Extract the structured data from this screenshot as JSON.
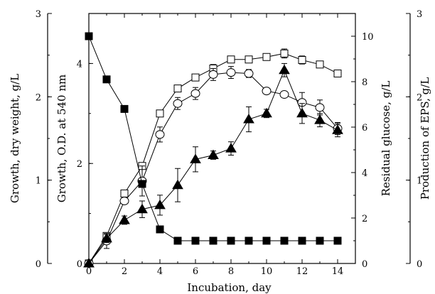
{
  "chart_data": {
    "type": "line",
    "xlabel": "Incubation, day",
    "x_ticks": [
      "0",
      "2",
      "4",
      "6",
      "8",
      "10",
      "12",
      "14"
    ],
    "xlim": [
      0,
      15
    ],
    "axes": [
      {
        "id": "dw",
        "label": "Growth, dry weight, g/L",
        "ylim": [
          0,
          3
        ],
        "ticks": [
          "0",
          "1",
          "2",
          "3"
        ]
      },
      {
        "id": "od",
        "label": "Growth, O.D. at 540 nm",
        "ylim": [
          0,
          5
        ],
        "ticks": [
          "0",
          "2",
          "4"
        ]
      },
      {
        "id": "glu",
        "label": "Residual glucose, g/L",
        "ylim": [
          0,
          11
        ],
        "ticks": [
          "0",
          "2",
          "4",
          "6",
          "8",
          "10"
        ]
      },
      {
        "id": "eps",
        "label": "Production of EPS, g/L",
        "ylim": [
          0,
          3
        ],
        "ticks": [
          "0",
          "1",
          "2",
          "3"
        ]
      }
    ],
    "series": [
      {
        "marker": "open-square",
        "axis": "od",
        "x": [
          0,
          1,
          2,
          3,
          4,
          5,
          6,
          7,
          8,
          9,
          10,
          11,
          12,
          13,
          14
        ],
        "y": [
          0,
          0.55,
          1.4,
          1.95,
          3.0,
          3.5,
          3.72,
          3.9,
          4.08,
          4.08,
          4.13,
          4.2,
          4.07,
          3.98,
          3.8
        ],
        "err": [
          0,
          0.05,
          0.05,
          0.05,
          0.06,
          0.05,
          0.05,
          0.08,
          0.06,
          0.05,
          0.05,
          0.09,
          0.08,
          0.06,
          0.06
        ]
      },
      {
        "marker": "open-circle",
        "axis": "od",
        "x": [
          0,
          1,
          2,
          3,
          4,
          5,
          6,
          7,
          8,
          9,
          10,
          11,
          12,
          13,
          14
        ],
        "y": [
          0,
          0.45,
          1.25,
          1.65,
          2.58,
          3.2,
          3.4,
          3.78,
          3.82,
          3.8,
          3.45,
          3.38,
          3.22,
          3.12,
          2.7
        ],
        "err": [
          0,
          0.15,
          0.05,
          0.3,
          0.15,
          0.12,
          0.12,
          0.12,
          0.12,
          0.08,
          0.05,
          0.03,
          0.2,
          0.15,
          0.12
        ]
      },
      {
        "marker": "filled-square",
        "axis": "glu",
        "x": [
          0,
          1,
          2,
          3,
          4,
          5,
          6,
          7,
          8,
          9,
          10,
          11,
          12,
          13,
          14
        ],
        "y": [
          10.0,
          8.1,
          6.8,
          3.5,
          1.5,
          1.0,
          1.0,
          1.0,
          1.0,
          1.0,
          1.0,
          1.0,
          1.0,
          1.0,
          1.0
        ],
        "err": [
          0,
          0,
          0,
          0,
          0,
          0,
          0,
          0,
          0,
          0,
          0.15,
          0,
          0.12,
          0,
          0
        ]
      },
      {
        "marker": "filled-triangle",
        "axis": "eps",
        "x": [
          0,
          1,
          2,
          3,
          4,
          5,
          6,
          7,
          8,
          9,
          10,
          11,
          12,
          13,
          14
        ],
        "y": [
          0,
          0.3,
          0.52,
          0.65,
          0.7,
          0.94,
          1.25,
          1.3,
          1.38,
          1.73,
          1.8,
          2.32,
          1.8,
          1.72,
          1.6
        ],
        "err": [
          0,
          0.05,
          0.05,
          0.1,
          0.12,
          0.2,
          0.15,
          0.05,
          0.08,
          0.15,
          0.05,
          0.08,
          0.12,
          0.08,
          0.08
        ]
      }
    ]
  }
}
